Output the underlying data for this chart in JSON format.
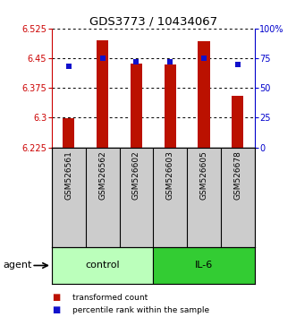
{
  "title": "GDS3773 / 10434067",
  "samples": [
    "GSM526561",
    "GSM526562",
    "GSM526602",
    "GSM526603",
    "GSM526605",
    "GSM526678"
  ],
  "bar_top": [
    6.298,
    6.495,
    6.437,
    6.435,
    6.492,
    6.355
  ],
  "bar_bottom": 6.225,
  "percentile_ranks": [
    68,
    75,
    72,
    72,
    75,
    70
  ],
  "ylim_left": [
    6.225,
    6.525
  ],
  "ylim_right": [
    0,
    100
  ],
  "yticks_left": [
    6.225,
    6.3,
    6.375,
    6.45,
    6.525
  ],
  "yticks_right": [
    0,
    25,
    50,
    75,
    100
  ],
  "ytick_labels_left": [
    "6.225",
    "6.3",
    "6.375",
    "6.45",
    "6.525"
  ],
  "ytick_labels_right": [
    "0",
    "25",
    "50",
    "75",
    "100%"
  ],
  "bar_color": "#bb1100",
  "square_color": "#1111cc",
  "control_color": "#bbffbb",
  "il6_color": "#33cc33",
  "sample_bg_color": "#cccccc",
  "left_axis_color": "#cc0000",
  "right_axis_color": "#0000cc",
  "bar_width": 0.35,
  "legend_items": [
    "transformed count",
    "percentile rank within the sample"
  ],
  "legend_colors": [
    "#bb1100",
    "#1111cc"
  ],
  "figsize": [
    3.31,
    3.54
  ],
  "dpi": 100
}
